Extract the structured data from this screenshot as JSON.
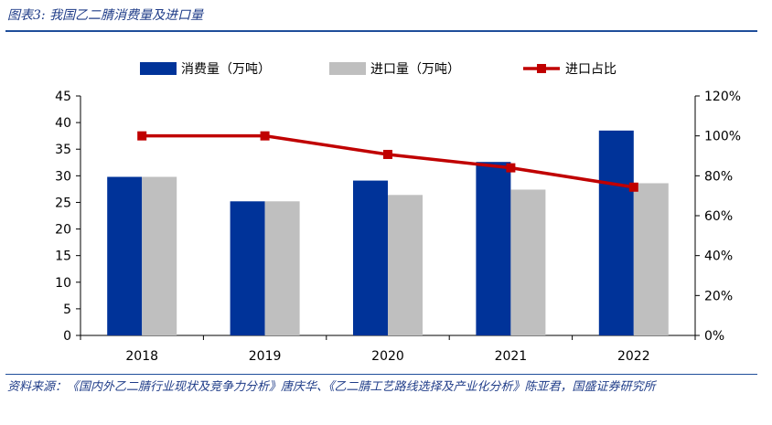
{
  "figure_title": "图表3: 我国乙二腈消费量及进口量",
  "source_text": "资料来源：《国内外乙二腈行业现状及竞争力分析》唐庆华、《乙二腈工艺路线选择及产业化分析》陈亚君，国盛证券研究所",
  "colors": {
    "consumption": "#003399",
    "import": "#bfbfbf",
    "share": "#c00000",
    "accent": "#1f4e9a"
  },
  "chart_data": {
    "type": "bar",
    "categories": [
      "2018",
      "2019",
      "2020",
      "2021",
      "2022"
    ],
    "series": [
      {
        "name": "消费量（万吨）",
        "type": "bar",
        "axis": "left",
        "values": [
          29.8,
          25.2,
          29.1,
          32.6,
          38.5
        ]
      },
      {
        "name": "进口量（万吨）",
        "type": "bar",
        "axis": "left",
        "values": [
          29.8,
          25.2,
          26.4,
          27.4,
          28.6
        ]
      },
      {
        "name": "进口占比",
        "type": "line",
        "axis": "right",
        "values": [
          1.0,
          1.0,
          0.907,
          0.84,
          0.743
        ]
      }
    ],
    "y_left": {
      "ylim": [
        0,
        45
      ],
      "ticks": [
        "0",
        "5",
        "10",
        "15",
        "20",
        "25",
        "30",
        "35",
        "40",
        "45"
      ]
    },
    "y_right": {
      "ylim": [
        0,
        1.2
      ],
      "ticks": [
        "0%",
        "20%",
        "40%",
        "60%",
        "80%",
        "100%",
        "120%"
      ]
    },
    "legend_position": "top",
    "grid": false
  }
}
